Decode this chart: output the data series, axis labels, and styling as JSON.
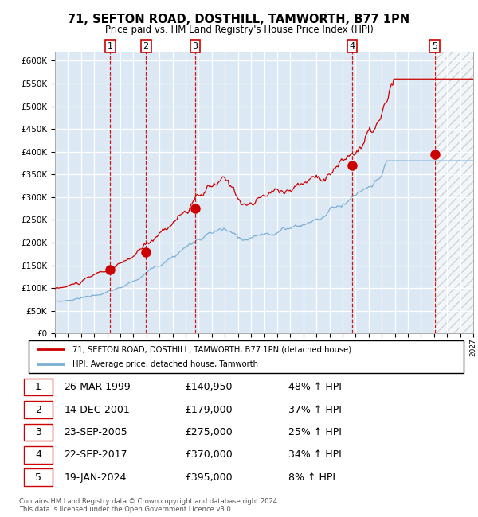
{
  "title": "71, SEFTON ROAD, DOSTHILL, TAMWORTH, B77 1PN",
  "subtitle": "Price paid vs. HM Land Registry's House Price Index (HPI)",
  "x_start_year": 1995,
  "x_end_year": 2027,
  "ylim": [
    0,
    620000
  ],
  "yticks": [
    0,
    50000,
    100000,
    150000,
    200000,
    250000,
    300000,
    350000,
    400000,
    450000,
    500000,
    550000,
    600000
  ],
  "bg_color": "#dce9f5",
  "grid_color": "#ffffff",
  "sale_points": [
    {
      "year": 1999.23,
      "price": 140950,
      "label": "1"
    },
    {
      "year": 2001.96,
      "price": 179000,
      "label": "2"
    },
    {
      "year": 2005.73,
      "price": 275000,
      "label": "3"
    },
    {
      "year": 2017.73,
      "price": 370000,
      "label": "4"
    },
    {
      "year": 2024.05,
      "price": 395000,
      "label": "5"
    }
  ],
  "sale_vlines": [
    1999.23,
    2001.96,
    2005.73,
    2017.73,
    2024.05
  ],
  "table_data": [
    [
      "1",
      "26-MAR-1999",
      "£140,950",
      "48% ↑ HPI"
    ],
    [
      "2",
      "14-DEC-2001",
      "£179,000",
      "37% ↑ HPI"
    ],
    [
      "3",
      "23-SEP-2005",
      "£275,000",
      "25% ↑ HPI"
    ],
    [
      "4",
      "22-SEP-2017",
      "£370,000",
      "34% ↑ HPI"
    ],
    [
      "5",
      "19-JAN-2024",
      "£395,000",
      "8% ↑ HPI"
    ]
  ],
  "legend_line1": "71, SEFTON ROAD, DOSTHILL, TAMWORTH, B77 1PN (detached house)",
  "legend_line2": "HPI: Average price, detached house, Tamworth",
  "footer": "Contains HM Land Registry data © Crown copyright and database right 2024.\nThis data is licensed under the Open Government Licence v3.0.",
  "red_line_color": "#cc0000",
  "blue_line_color": "#7bafd4",
  "marker_color": "#cc0000",
  "vline_color": "#cc0000"
}
